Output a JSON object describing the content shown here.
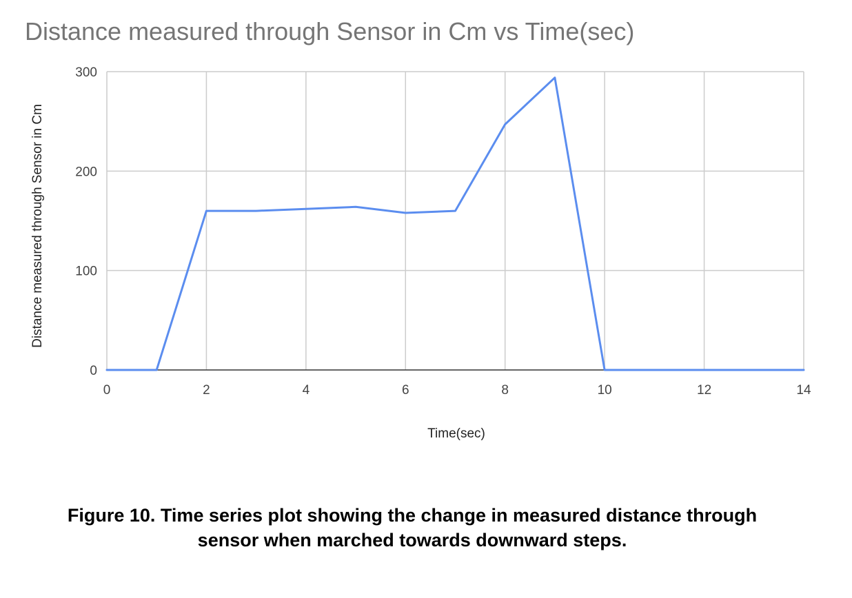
{
  "chart_data": {
    "type": "line",
    "title": "Distance measured through Sensor in Cm vs Time(sec)",
    "xlabel": "Time(sec)",
    "ylabel": "Distance measured through Sensor in Cm",
    "xlim": [
      0,
      14
    ],
    "ylim": [
      0,
      300
    ],
    "xticks": [
      0,
      2,
      4,
      6,
      8,
      10,
      12,
      14
    ],
    "yticks": [
      0,
      100,
      200,
      300
    ],
    "grid": true,
    "series": [
      {
        "color": "#5b8def",
        "x": [
          0,
          1,
          2,
          3,
          4,
          5,
          6,
          7,
          8,
          9,
          10,
          11,
          12,
          13,
          14
        ],
        "y": [
          0,
          0,
          160,
          160,
          162,
          164,
          158,
          160,
          247,
          294,
          0,
          0,
          0,
          0,
          0
        ]
      }
    ]
  },
  "caption": {
    "line1": "Figure 10. Time series plot showing the change in measured distance through",
    "line2": "sensor when marched towards downward steps."
  }
}
